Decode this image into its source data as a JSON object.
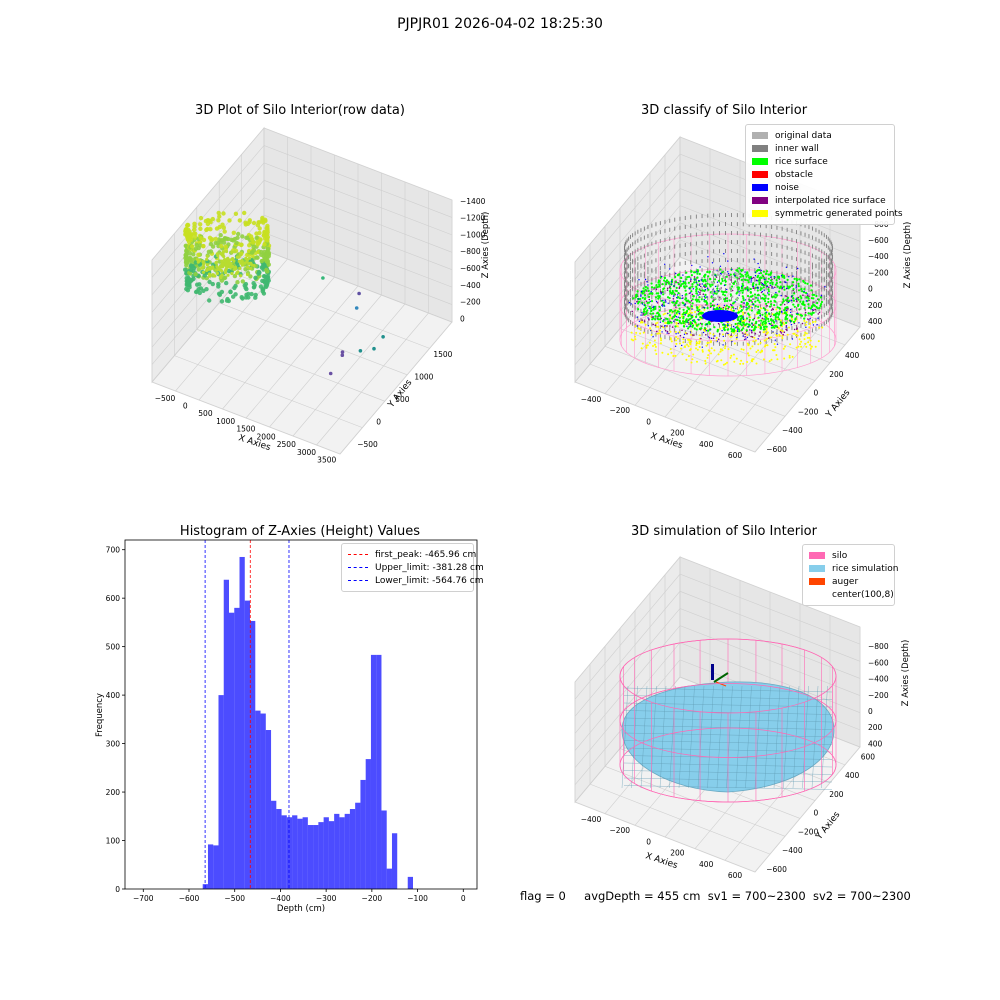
{
  "figure": {
    "suptitle": "PJPJR01 2026-04-02 18:25:30",
    "footer": {
      "flag": "flag = 0",
      "avg_depth": "avgDepth = 455 cm",
      "sv1": "sv1 = 700~2300",
      "sv2": "sv2 = 700~2300"
    }
  },
  "chart_data": [
    {
      "type": "scatter",
      "panel": "top-left",
      "title": "3D Plot of Silo Interior(row data)",
      "xlabel": "X Axies",
      "ylabel": "Y Axies",
      "zlabel": "Z Axies (Depth)",
      "x_ticks": [
        "−500",
        "0",
        "500",
        "1000",
        "1500",
        "2000",
        "2500",
        "3000",
        "3500"
      ],
      "y_ticks": [
        "−500",
        "0",
        "500",
        "1000",
        "1500"
      ],
      "z_ticks": [
        "0",
        "−200",
        "−400",
        "−600",
        "−800",
        "−1000",
        "−1200",
        "−1400"
      ],
      "xlim": [
        -600,
        3600
      ],
      "ylim": [
        -700,
        1700
      ],
      "zlim": [
        -1450,
        50
      ],
      "outliers": [
        {
          "x": 2150,
          "y": 1100,
          "z": -1000
        },
        {
          "x": 2200,
          "y": 1000,
          "z": -1100
        },
        {
          "x": 3000,
          "y": 800,
          "z": -1150
        },
        {
          "x": 2900,
          "y": 700,
          "z": -1250
        },
        {
          "x": 2700,
          "y": 600,
          "z": -1250
        },
        {
          "x": 2400,
          "y": 500,
          "z": -1300
        },
        {
          "x": 2350,
          "y": 300,
          "z": -1400
        },
        {
          "x": 2300,
          "y": 600,
          "z": -1350
        },
        {
          "x": 1550,
          "y": 900,
          "z": -800
        }
      ]
    },
    {
      "type": "scatter",
      "panel": "top-right",
      "title": "3D classify of Silo Interior",
      "xlabel": "X Axies",
      "ylabel": "Y Axies",
      "zlabel": "Z Axies (Depth)",
      "x_ticks": [
        "−400",
        "−200",
        "0",
        "200",
        "400",
        "600"
      ],
      "y_ticks": [
        "−600",
        "−400",
        "−200",
        "0",
        "200",
        "400",
        "600"
      ],
      "z_ticks": [
        "400",
        "200",
        "0",
        "−200",
        "−400",
        "−600",
        "−800"
      ],
      "xlim": [
        -550,
        700
      ],
      "ylim": [
        -700,
        700
      ],
      "zlim": [
        -900,
        450
      ],
      "legend": [
        {
          "label": "original data",
          "color": "#b0b0b0"
        },
        {
          "label": "inner wall",
          "color": "#808080"
        },
        {
          "label": "rice surface",
          "color": "#00ff00"
        },
        {
          "label": "obstacle",
          "color": "#ff0000"
        },
        {
          "label": "noise",
          "color": "#0000ff"
        },
        {
          "label": "interpolated rice surface",
          "color": "#800080"
        },
        {
          "label": "symmetric generated points",
          "color": "#ffff00"
        }
      ]
    },
    {
      "type": "bar",
      "panel": "bottom-left",
      "title": "Histogram of Z-Axies (Height) Values",
      "xlabel": "Depth (cm)",
      "ylabel": "Frequency",
      "xlim": [
        -740,
        30
      ],
      "ylim": [
        0,
        720
      ],
      "x_ticks": [
        -700,
        -600,
        -500,
        -400,
        -300,
        -200,
        -100,
        0
      ],
      "y_ticks": [
        0,
        100,
        200,
        300,
        400,
        500,
        600,
        700
      ],
      "bin_start": -570,
      "bin_width": 11.5,
      "values": [
        10,
        92,
        90,
        400,
        638,
        570,
        580,
        685,
        595,
        553,
        368,
        362,
        328,
        182,
        165,
        152,
        148,
        152,
        145,
        148,
        132,
        132,
        138,
        148,
        140,
        155,
        148,
        155,
        165,
        178,
        225,
        268,
        483,
        483,
        162,
        42,
        115,
        0,
        0,
        25
      ],
      "bar_color": "#0000ff",
      "vlines": [
        {
          "x": -465.96,
          "label": "first_peak: -465.96 cm",
          "color": "#ff0000"
        },
        {
          "x": -381.28,
          "label": "Upper_limit: -381.28 cm",
          "color": "#0000ff"
        },
        {
          "x": -564.76,
          "label": "Lower_limit: -564.76 cm",
          "color": "#0000ff"
        }
      ]
    },
    {
      "type": "scatter",
      "panel": "bottom-right",
      "title": "3D simulation of Silo Interior",
      "xlabel": "X Axies",
      "ylabel": "Y Axies",
      "zlabel": "Z Axies (Depth)",
      "x_ticks": [
        "−400",
        "−200",
        "0",
        "200",
        "400",
        "600"
      ],
      "y_ticks": [
        "−600",
        "−400",
        "−200",
        "0",
        "200",
        "400",
        "600"
      ],
      "z_ticks": [
        "400",
        "200",
        "0",
        "−200",
        "−400",
        "−600",
        "−800"
      ],
      "legend": [
        {
          "label": "silo",
          "color": "#ff69b4"
        },
        {
          "label": "rice simulation",
          "color": "#87ceeb"
        },
        {
          "label": "auger",
          "color": "#ff4500"
        },
        {
          "label": "center(100,8)",
          "color": ""
        }
      ]
    }
  ]
}
